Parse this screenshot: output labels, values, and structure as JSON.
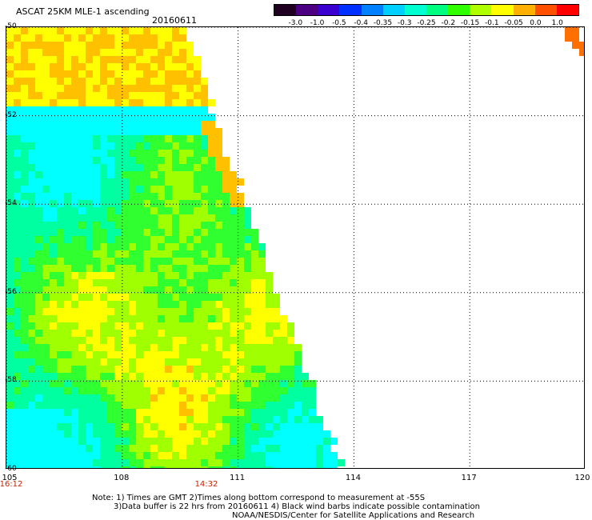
{
  "header": {
    "title": "ASCAT 25KM MLE-1 ascending",
    "date": "20160611"
  },
  "colorbar": {
    "labels": [
      "-3.0",
      "-1.0",
      "-0.5",
      "-0.4",
      "-0.35",
      "-0.3",
      "-0.25",
      "-0.2",
      "-0.15",
      "-0.1",
      "-0.05",
      "0.0",
      "1.0"
    ],
    "colors": [
      "#200020",
      "#4a0080",
      "#3a00d0",
      "#0030ff",
      "#0080ff",
      "#00d0ff",
      "#00ffd0",
      "#00ff80",
      "#30ff00",
      "#b0ff00",
      "#ffff00",
      "#ffb000",
      "#ff5000",
      "#ff0000"
    ]
  },
  "map": {
    "lat_labels": [
      "-50",
      "-52",
      "-54",
      "-56",
      "-58",
      "-60"
    ],
    "lon_labels": [
      "105",
      "108",
      "111",
      "114",
      "117",
      "120"
    ],
    "lat_range": [
      -60,
      -50
    ],
    "lon_range": [
      105,
      120
    ],
    "time_labels": [
      {
        "lon": 105,
        "text": "16:12"
      },
      {
        "lon": 110.2,
        "text": "14:32"
      }
    ]
  },
  "footer": {
    "line1": "Note: 1) Times are GMT 2)Times along bottom correspond to measurement at -55S",
    "line2": "3)Data buffer is 22 hrs from 20160611 4) Black wind barbs indicate possible contamination",
    "line3": "NOAA/NESDIS/Center for Satellite Applications and Research"
  }
}
